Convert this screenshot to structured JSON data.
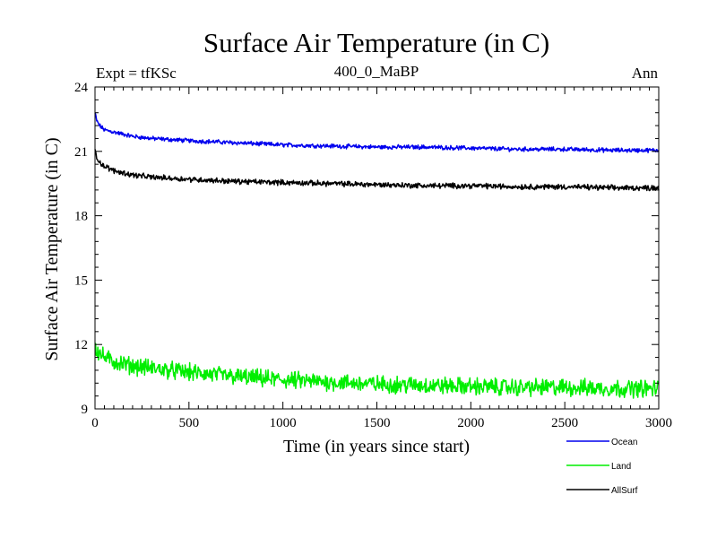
{
  "chart_data": {
    "type": "line",
    "title": "Surface Air Temperature (in C)",
    "subtitle_left": "Expt = tfKSc",
    "subtitle_center": "400_0_MaBP",
    "subtitle_right": "Ann",
    "xlabel": "Time (in years since start)",
    "ylabel": "Surface Air Temperature (in C)",
    "xlim": [
      0,
      3000
    ],
    "ylim": [
      9,
      24
    ],
    "xticks": [
      0,
      500,
      1000,
      1500,
      2000,
      2500,
      3000
    ],
    "yticks": [
      9,
      12,
      15,
      18,
      21,
      24
    ],
    "series": [
      {
        "name": "Ocean",
        "color": "#0000ee",
        "x": [
          0,
          10,
          25,
          50,
          100,
          200,
          300,
          500,
          750,
          1000,
          1250,
          1500,
          1750,
          2000,
          2250,
          2500,
          2750,
          3000
        ],
        "values": [
          22.8,
          22.4,
          22.2,
          22.0,
          21.9,
          21.7,
          21.6,
          21.5,
          21.4,
          21.3,
          21.25,
          21.2,
          21.2,
          21.15,
          21.1,
          21.1,
          21.05,
          21.05
        ],
        "noise": 0.08
      },
      {
        "name": "Land",
        "color": "#00ee00",
        "x": [
          0,
          10,
          25,
          50,
          100,
          200,
          300,
          500,
          750,
          1000,
          1250,
          1500,
          1750,
          2000,
          2250,
          2500,
          2750,
          3000
        ],
        "values": [
          12.0,
          11.7,
          11.6,
          11.4,
          11.2,
          11.0,
          10.9,
          10.7,
          10.5,
          10.35,
          10.25,
          10.15,
          10.1,
          10.05,
          10.0,
          10.0,
          9.95,
          9.95
        ],
        "noise": 0.32
      },
      {
        "name": "AllSurf",
        "color": "#000000",
        "x": [
          0,
          10,
          25,
          50,
          100,
          200,
          300,
          500,
          750,
          1000,
          1250,
          1500,
          1750,
          2000,
          2250,
          2500,
          2750,
          3000
        ],
        "values": [
          21.1,
          20.7,
          20.5,
          20.3,
          20.1,
          19.9,
          19.8,
          19.7,
          19.6,
          19.55,
          19.5,
          19.45,
          19.4,
          19.4,
          19.35,
          19.35,
          19.3,
          19.3
        ],
        "noise": 0.1
      }
    ]
  }
}
